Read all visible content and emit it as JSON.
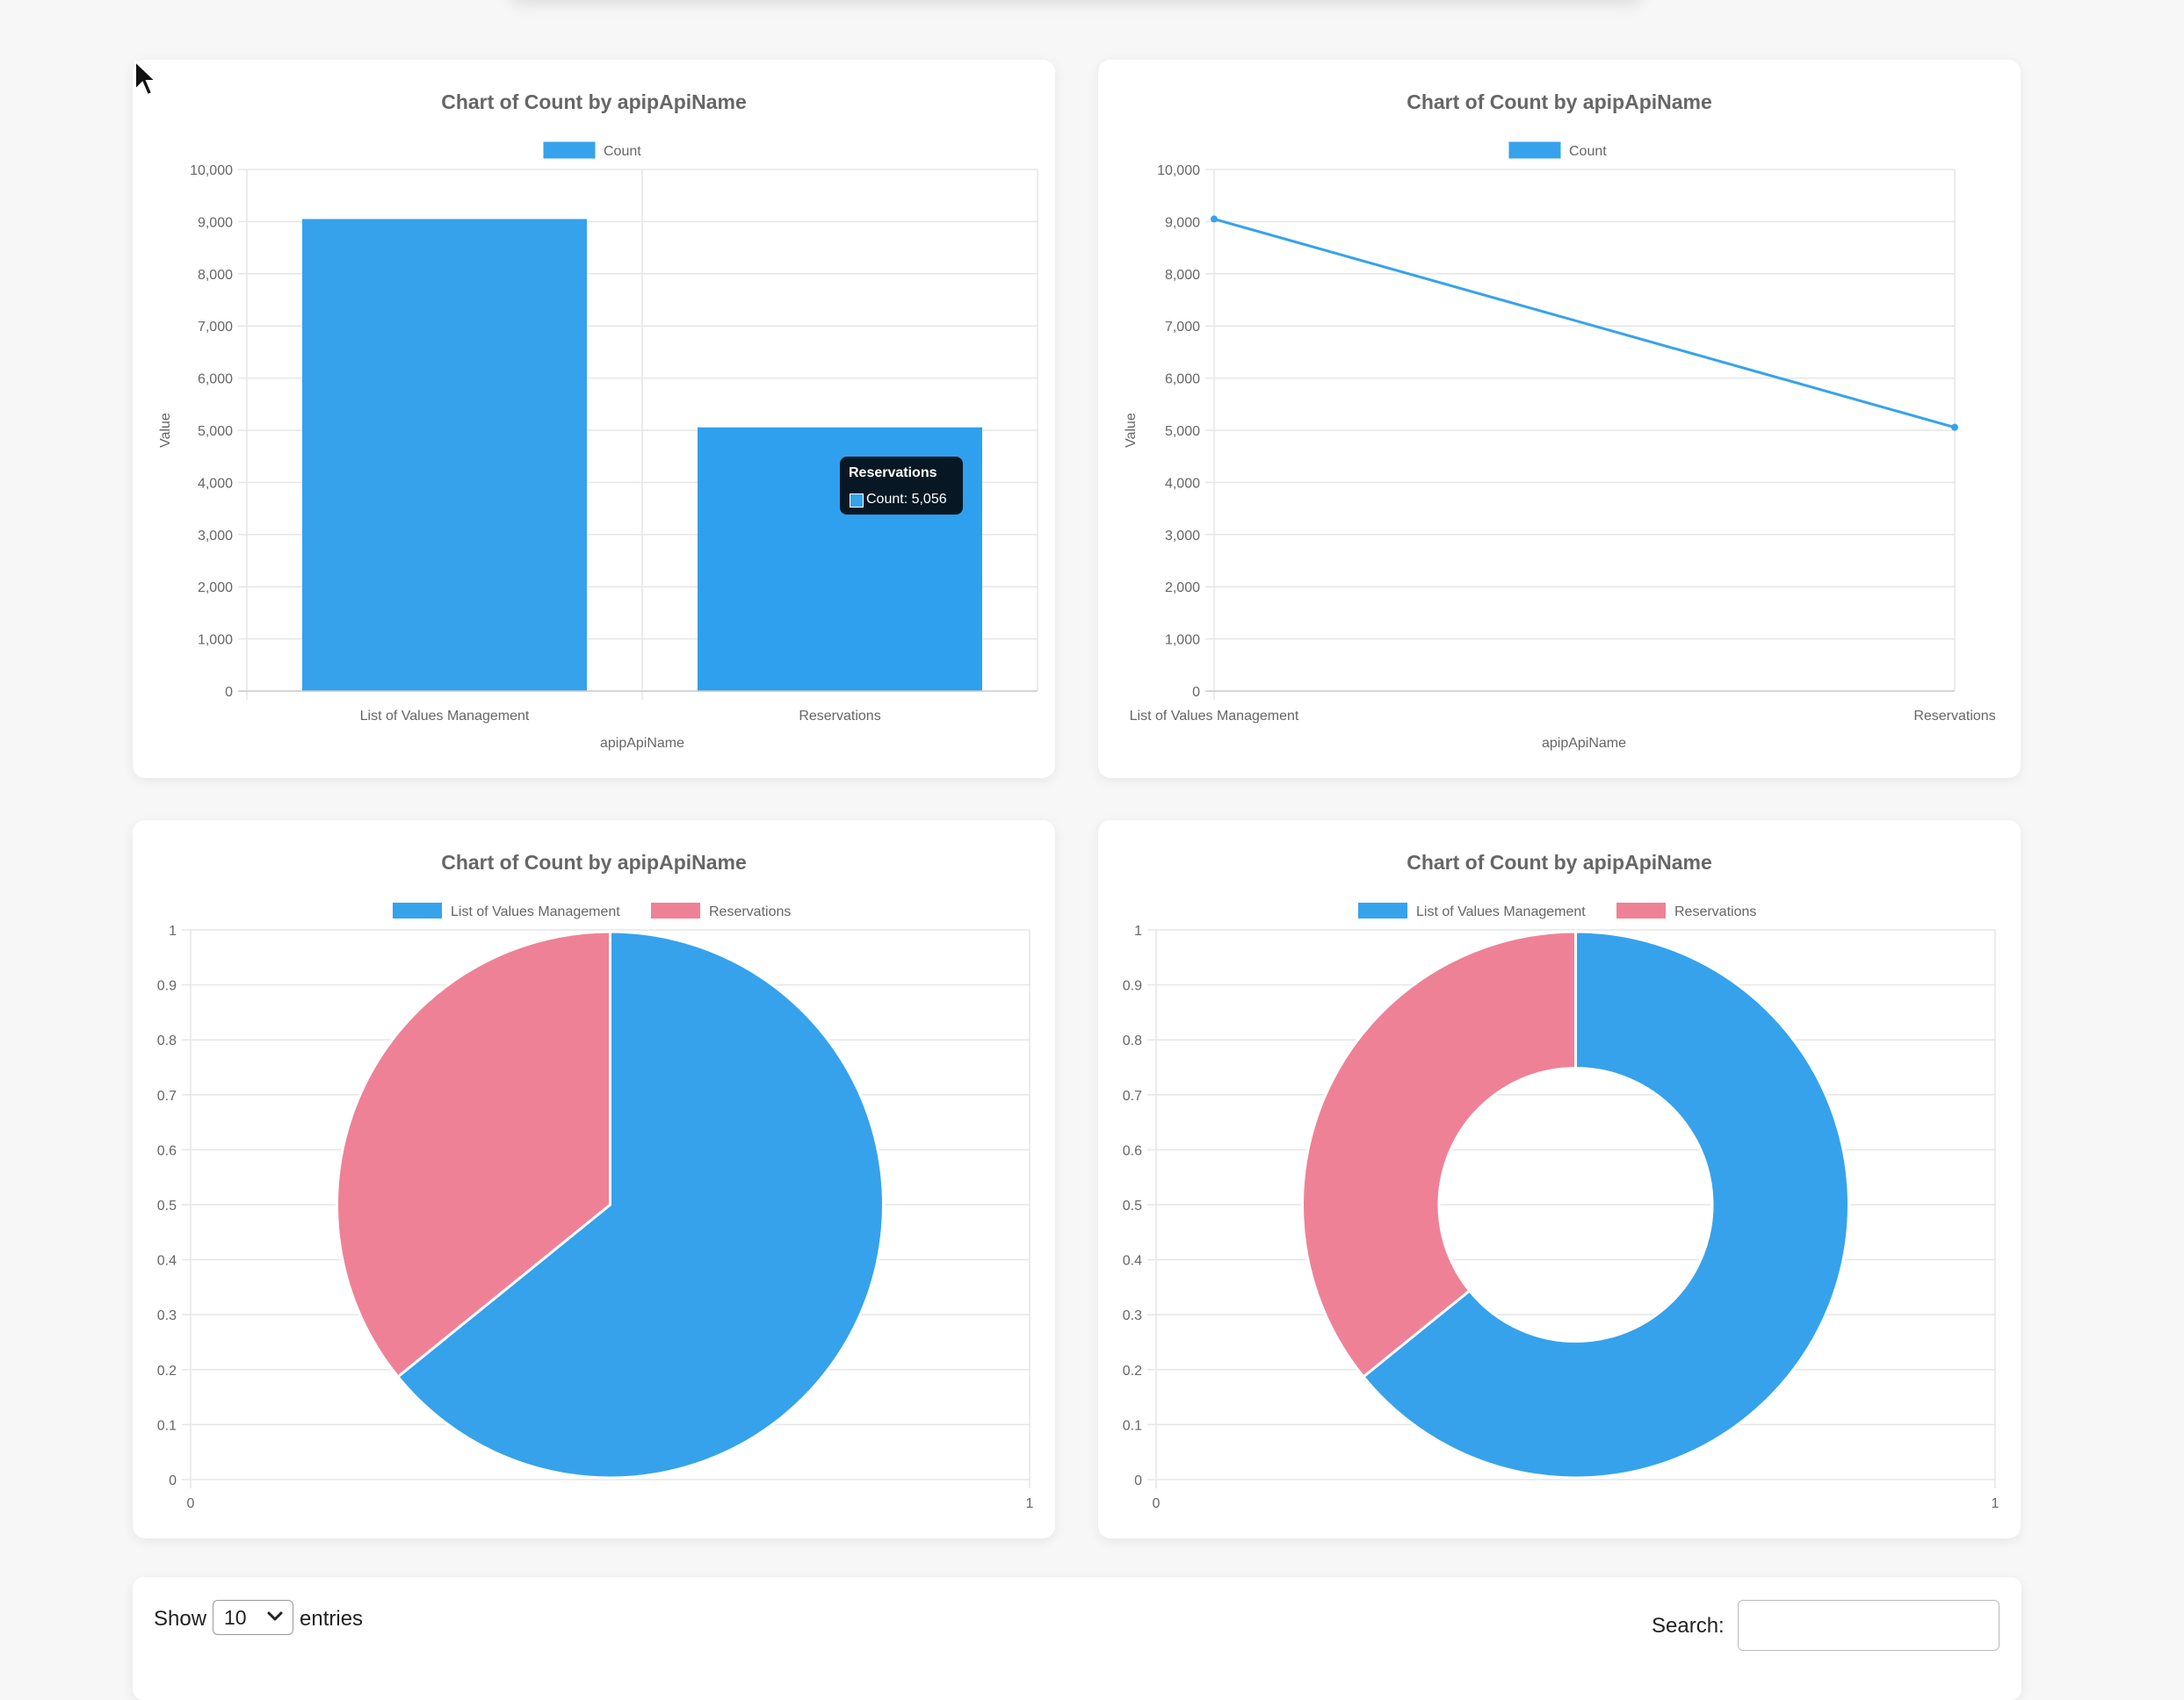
{
  "chart_data": [
    {
      "type": "bar",
      "title": "Chart of Count by apipApiName",
      "categories": [
        "List of Values Management",
        "Reservations"
      ],
      "series": [
        {
          "name": "Count",
          "values": [
            9050,
            5056
          ]
        }
      ],
      "xlabel": "apipApiName",
      "ylabel": "Value",
      "ylim": [
        0,
        10000
      ],
      "yticks": [
        "0",
        "1,000",
        "2,000",
        "3,000",
        "4,000",
        "5,000",
        "6,000",
        "7,000",
        "8,000",
        "9,000",
        "10,000"
      ],
      "legend": "top",
      "grid": true,
      "color": "#36a2eb",
      "tooltip": {
        "title": "Reservations",
        "body": "Count: 5,056"
      }
    },
    {
      "type": "line",
      "title": "Chart of Count by apipApiName",
      "categories": [
        "List of Values Management",
        "Reservations"
      ],
      "series": [
        {
          "name": "Count",
          "values": [
            9050,
            5056
          ]
        }
      ],
      "xlabel": "apipApiName",
      "ylabel": "Value",
      "ylim": [
        0,
        10000
      ],
      "yticks": [
        "0",
        "1,000",
        "2,000",
        "3,000",
        "4,000",
        "5,000",
        "6,000",
        "7,000",
        "8,000",
        "9,000",
        "10,000"
      ],
      "legend": "top",
      "grid": true,
      "color": "#36a2eb"
    },
    {
      "type": "pie",
      "title": "Chart of Count by apipApiName",
      "labels": [
        "List of Values Management",
        "Reservations"
      ],
      "values": [
        9050,
        5056
      ],
      "colors": [
        "#36a2eb",
        "#ef8196"
      ],
      "yticks": [
        "0",
        "0.1",
        "0.2",
        "0.3",
        "0.4",
        "0.5",
        "0.6",
        "0.7",
        "0.8",
        "0.9",
        "1"
      ],
      "xticks": [
        "0",
        "1"
      ],
      "legend": "top",
      "grid": true
    },
    {
      "type": "doughnut",
      "title": "Chart of Count by apipApiName",
      "labels": [
        "List of Values Management",
        "Reservations"
      ],
      "values": [
        9050,
        5056
      ],
      "colors": [
        "#36a2eb",
        "#ef8196"
      ],
      "yticks": [
        "0",
        "0.1",
        "0.2",
        "0.3",
        "0.4",
        "0.5",
        "0.6",
        "0.7",
        "0.8",
        "0.9",
        "1"
      ],
      "xticks": [
        "0",
        "1"
      ],
      "legend": "top",
      "grid": true
    }
  ],
  "table_controls": {
    "show_label": "Show",
    "entries_value": "10",
    "entries_label": "entries",
    "search_label": "Search:",
    "search_value": ""
  },
  "icons": {
    "select": "chevron-down-icon",
    "cursor": "mouse-pointer-icon"
  }
}
